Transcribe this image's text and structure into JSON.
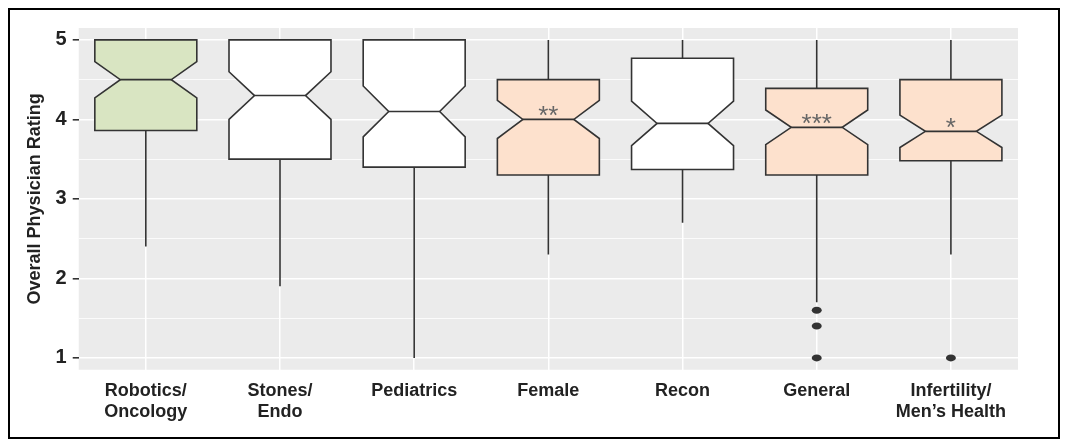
{
  "chart_data": {
    "type": "box",
    "ylabel": "Overall Physician Rating",
    "categories": [
      "Robotics/ Oncology",
      "Stones/ Endo",
      "Pediatrics",
      "Female",
      "Recon",
      "General",
      "Infertility/ Men’s Health"
    ],
    "colors": [
      "#d9e5c2",
      "#ffffff",
      "#ffffff",
      "#fde1cd",
      "#ffffff",
      "#fde1cd",
      "#fde1cd"
    ],
    "boxes": [
      {
        "low": 2.4,
        "q1": 3.86,
        "median": 4.5,
        "q3": 5,
        "high": 5
      },
      {
        "low": 1.9,
        "q1": 3.5,
        "median": 4.3,
        "q3": 5,
        "high": 5
      },
      {
        "low": 1,
        "q1": 3.4,
        "median": 4.1,
        "q3": 5,
        "high": 5
      },
      {
        "low": 2.3,
        "q1": 3.3,
        "median": 4,
        "q3": 4.5,
        "high": 5
      },
      {
        "low": 2.7,
        "q1": 3.37,
        "median": 3.95,
        "q3": 4.77,
        "high": 5
      },
      {
        "low": 1.7,
        "q1": 3.3,
        "median": 3.9,
        "q3": 4.39,
        "high": 5,
        "outliers": [
          1.6,
          1.4,
          1
        ]
      },
      {
        "low": 2.3,
        "q1": 3.48,
        "median": 3.85,
        "q3": 4.5,
        "high": 5,
        "outliers": [
          1
        ]
      }
    ],
    "ylim": [
      0.85,
      5.15
    ],
    "yticks": [
      1,
      {
        "value": 1.5,
        "label": null
      },
      2,
      {
        "value": 2.5,
        "label": null
      },
      3,
      {
        "value": 3.5,
        "label": null
      },
      4,
      {
        "value": 4.5,
        "label": null
      },
      5
    ],
    "grid": true,
    "annotations": [
      {
        "text": "**",
        "x": "Female",
        "y": 4
      },
      {
        "text": "***",
        "x": "General",
        "y": 3.9
      },
      {
        "text": "*",
        "x": "Infertility/ Men’s Health",
        "y": 3.85
      }
    ]
  }
}
